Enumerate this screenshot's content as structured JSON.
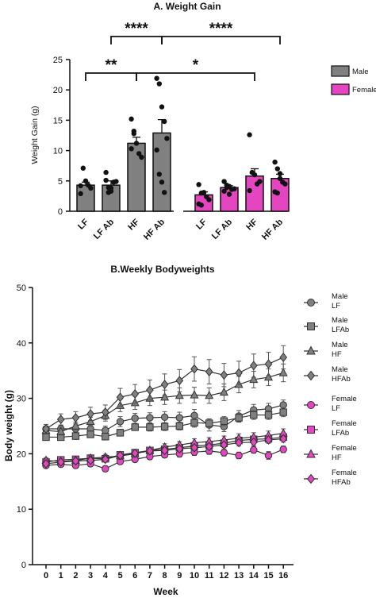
{
  "colors": {
    "male": "#808080",
    "female": "#e645c2",
    "male_dark": "#666666",
    "female_line": "#c43aa8"
  },
  "chart_data": [
    {
      "type": "bar",
      "title": "A. Weight Gain",
      "ylabel": "Weight Gain (g)",
      "xlabel": "",
      "ylim": [
        0,
        25
      ],
      "yticks": [
        "0",
        "5",
        "10",
        "15",
        "20",
        "25"
      ],
      "legend": {
        "position": "right",
        "entries": [
          "Male",
          "Female"
        ]
      },
      "groups": [
        {
          "name": "Male",
          "categories": [
            "LF",
            "LF Ab",
            "HF",
            "HF Ab"
          ],
          "values": [
            4.3,
            4.3,
            11.2,
            12.9
          ],
          "errors": [
            0.5,
            0.7,
            1.0,
            2.2
          ],
          "points": [
            [
              4.2,
              7.1,
              5.0,
              4.3,
              3.8,
              2.9
            ],
            [
              5.1,
              3.9,
              3.8,
              4.8,
              4.9,
              6.4,
              3.1,
              3.3
            ],
            [
              15.2,
              12.8,
              11.2,
              9.5,
              8.9,
              10.3,
              13.2
            ],
            [
              21.9,
              21.0,
              17.2,
              14.8,
              12.0,
              10.1,
              6.1,
              4.8,
              3.1
            ]
          ]
        },
        {
          "name": "Female",
          "categories": [
            "LF",
            "LF Ab",
            "HF",
            "HF Ab"
          ],
          "values": [
            2.7,
            3.9,
            5.8,
            5.4
          ],
          "errors": [
            0.5,
            0.3,
            1.2,
            0.7
          ],
          "points": [
            [
              4.4,
              3.0,
              3.1,
              2.4,
              1.9,
              1.2,
              1.0
            ],
            [
              4.9,
              4.3,
              4.1,
              3.6,
              3.7,
              3.3,
              3.9,
              2.8
            ],
            [
              12.6,
              6.4,
              6.0,
              4.5,
              4.9,
              3.4
            ],
            [
              8.1,
              7.0,
              6.2,
              4.8,
              4.5,
              3.2,
              3.0,
              5.4
            ]
          ]
        }
      ],
      "significance": [
        {
          "label": "****",
          "from": "LF Ab (Male)",
          "to": "HF Ab (Male)"
        },
        {
          "label": "****",
          "from": "HF Ab (Male)",
          "to": "HF Ab (Female)"
        },
        {
          "label": "**",
          "from": "LF (Male)",
          "to": "HF (Male)"
        },
        {
          "label": "*",
          "from": "HF (Male)",
          "to": "HF (Female)"
        }
      ]
    },
    {
      "type": "line",
      "title": "B.Weekly Bodyweights",
      "xlabel": "Week",
      "ylabel": "Body weight (g)",
      "xlim": [
        0,
        16
      ],
      "ylim": [
        0,
        50
      ],
      "x": [
        0,
        1,
        2,
        3,
        4,
        5,
        6,
        7,
        8,
        9,
        10,
        11,
        12,
        13,
        14,
        15,
        16
      ],
      "yticks": [
        "0",
        "10",
        "20",
        "30",
        "40",
        "50"
      ],
      "legend": {
        "position": "right"
      },
      "series": [
        {
          "name": "Male LF",
          "line1": "Male",
          "line2": "LF",
          "group": "male",
          "marker": "circle",
          "values": [
            24.5,
            24.5,
            24.5,
            24.5,
            24.2,
            25.8,
            26.4,
            26.5,
            26.6,
            26.5,
            26.9,
            25.2,
            24.9,
            26.8,
            27.9,
            28.1,
            28.8
          ],
          "errors": [
            0.4,
            0.6,
            0.7,
            0.6,
            0.8,
            0.9,
            0.9,
            0.9,
            1.0,
            1.0,
            1.1,
            1.1,
            0.9,
            1.0,
            1.0,
            1.0,
            0.9
          ]
        },
        {
          "name": "Male LFAb",
          "line1": "Male",
          "line2": "LFAb",
          "group": "male",
          "marker": "square",
          "values": [
            23.0,
            23.0,
            23.2,
            23.5,
            23.1,
            23.8,
            24.8,
            24.8,
            24.9,
            25.0,
            25.6,
            25.5,
            25.9,
            26.5,
            27.0,
            27.0,
            27.5
          ],
          "errors": [
            0.5,
            0.5,
            0.6,
            0.5,
            0.6,
            0.6,
            0.6,
            0.7,
            0.7,
            0.7,
            0.8,
            0.8,
            0.8,
            0.8,
            0.8,
            0.8,
            0.8
          ]
        },
        {
          "name": "Male HF",
          "line1": "Male",
          "line2": "HF",
          "group": "male",
          "marker": "triangle",
          "values": [
            24.2,
            24.0,
            25.0,
            25.8,
            26.9,
            28.7,
            29.2,
            30.0,
            30.2,
            30.5,
            30.6,
            30.5,
            31.1,
            32.5,
            33.4,
            33.8,
            34.6
          ],
          "errors": [
            0.5,
            0.6,
            0.7,
            0.8,
            1.0,
            1.1,
            1.2,
            1.3,
            1.3,
            1.4,
            1.4,
            1.4,
            1.5,
            1.5,
            1.5,
            1.5,
            1.6
          ]
        },
        {
          "name": "Male HFAb",
          "line1": "Male",
          "line2": "HFAb",
          "group": "male",
          "marker": "diamond",
          "values": [
            24.5,
            26.2,
            26.5,
            27.2,
            27.5,
            30.2,
            30.8,
            31.5,
            32.5,
            33.2,
            35.3,
            34.8,
            34.2,
            34.6,
            35.9,
            36.2,
            37.4
          ],
          "errors": [
            0.8,
            1.0,
            1.1,
            1.2,
            1.3,
            1.6,
            1.7,
            1.8,
            1.9,
            2.0,
            2.2,
            2.2,
            2.1,
            2.1,
            2.1,
            2.1,
            2.1
          ]
        },
        {
          "name": "Female LF",
          "line1": "Female",
          "line2": "LF",
          "group": "female",
          "marker": "circle",
          "values": [
            17.9,
            18.1,
            17.9,
            18.2,
            17.3,
            18.6,
            19.0,
            19.5,
            19.8,
            20.0,
            20.3,
            20.5,
            20.2,
            19.7,
            20.7,
            19.7,
            20.8
          ],
          "errors": [
            0.4,
            0.4,
            0.5,
            0.5,
            0.5,
            0.5,
            0.5,
            0.5,
            0.5,
            0.6,
            0.6,
            0.6,
            0.6,
            0.6,
            0.6,
            0.7,
            0.6
          ]
        },
        {
          "name": "Female LFAb",
          "line1": "Female",
          "line2": "LFAb",
          "group": "female",
          "marker": "square",
          "values": [
            18.5,
            18.9,
            19.0,
            19.2,
            19.1,
            19.8,
            20.2,
            20.6,
            20.8,
            21.1,
            21.4,
            21.6,
            21.9,
            22.4,
            22.6,
            22.7,
            23.0
          ],
          "errors": [
            0.4,
            0.4,
            0.4,
            0.4,
            0.5,
            0.5,
            0.5,
            0.5,
            0.5,
            0.5,
            0.5,
            0.6,
            0.6,
            0.6,
            0.6,
            0.6,
            0.6
          ]
        },
        {
          "name": "Female HF",
          "line1": "Female",
          "line2": "HF",
          "group": "female",
          "marker": "triangle",
          "values": [
            18.8,
            18.6,
            18.8,
            19.2,
            19.4,
            19.6,
            20.0,
            20.6,
            21.2,
            21.6,
            22.0,
            22.2,
            22.5,
            22.8,
            23.0,
            23.3,
            23.7
          ],
          "errors": [
            0.5,
            0.5,
            0.5,
            0.5,
            0.5,
            0.6,
            0.6,
            0.6,
            0.6,
            0.6,
            0.7,
            0.7,
            0.7,
            0.8,
            0.8,
            0.8,
            0.8
          ]
        },
        {
          "name": "Female HFAb",
          "line1": "Female",
          "line2": "HFAb",
          "group": "female",
          "marker": "diamond",
          "values": [
            18.2,
            18.5,
            18.7,
            18.8,
            19.0,
            19.7,
            20.1,
            20.5,
            20.6,
            20.9,
            21.1,
            21.3,
            21.6,
            22.0,
            22.1,
            22.5,
            22.7
          ],
          "errors": [
            0.4,
            0.4,
            0.4,
            0.4,
            0.5,
            0.5,
            0.5,
            0.5,
            0.5,
            0.5,
            0.5,
            0.5,
            0.5,
            0.6,
            0.6,
            0.6,
            0.6
          ]
        }
      ]
    }
  ]
}
